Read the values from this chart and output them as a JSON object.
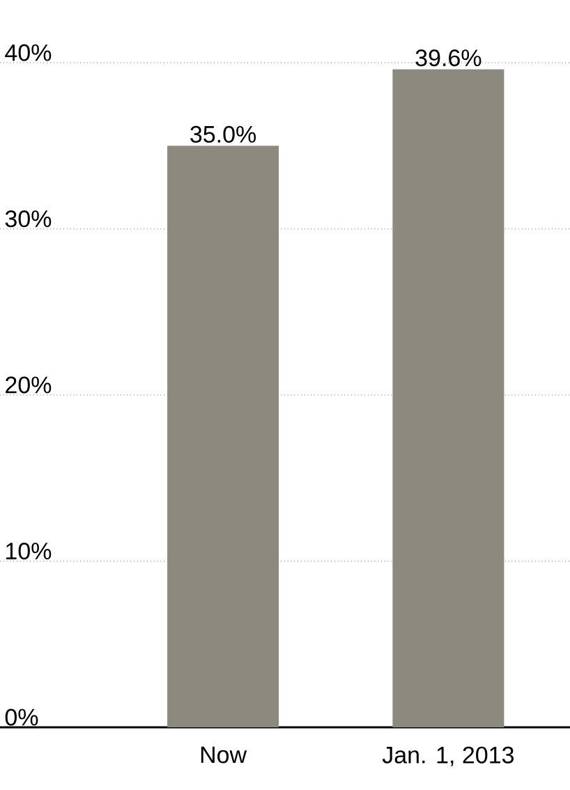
{
  "chart_data": {
    "type": "bar",
    "categories": [
      "Now",
      "Jan. 1, 2013"
    ],
    "values": [
      35.0,
      39.6
    ],
    "color": "#8c8a7e",
    "value_labels": [
      "35.0%",
      "39.6%"
    ],
    "ylim": [
      0,
      40
    ],
    "yticks": [
      {
        "value": 0,
        "label": "0%"
      },
      {
        "value": 10,
        "label": "10%"
      },
      {
        "value": 20,
        "label": "20%"
      },
      {
        "value": 30,
        "label": "30%"
      },
      {
        "value": 40,
        "label": "40%"
      }
    ],
    "grid": "y"
  }
}
